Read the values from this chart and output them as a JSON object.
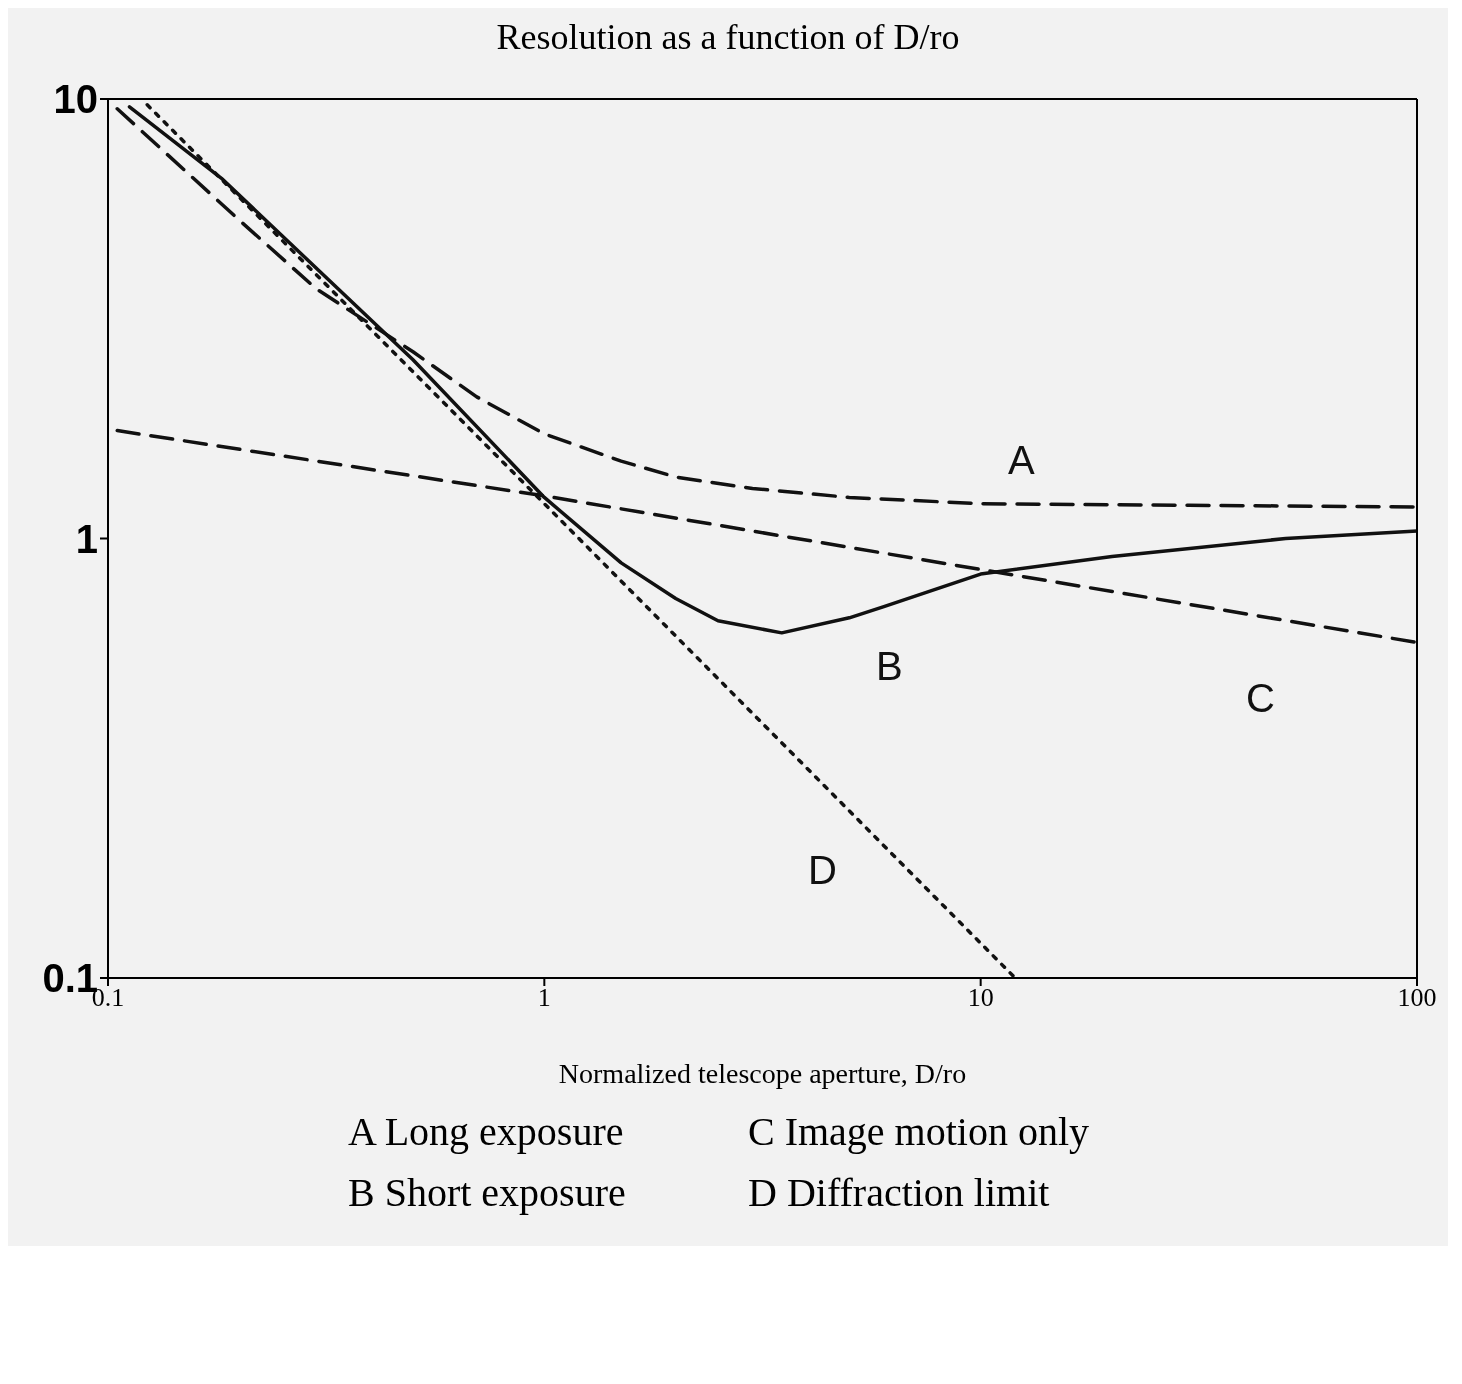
{
  "chart_data": {
    "type": "line",
    "title": "Resolution as a function of  D/ro",
    "xlabel": "Normalized telescope aperture, D/ro",
    "log": "xy",
    "xlim": [
      0.1,
      100
    ],
    "ylim": [
      0.1,
      10
    ],
    "xticks": [
      0.1,
      1,
      10,
      100
    ],
    "yticks": [
      0.1,
      1,
      10
    ],
    "legend": false,
    "marker": "none",
    "series": [
      {
        "name": "A",
        "color": "#111111",
        "line_style": "dashed",
        "x": [
          0.105,
          0.2,
          0.3,
          0.5,
          0.7,
          1,
          1.5,
          2,
          3,
          5,
          10,
          30,
          100
        ],
        "values": [
          9.5,
          5.3,
          3.7,
          2.66,
          2.1,
          1.73,
          1.5,
          1.38,
          1.3,
          1.24,
          1.2,
          1.19,
          1.18
        ]
      },
      {
        "name": "B",
        "color": "#111111",
        "line_style": "solid",
        "x": [
          0.112,
          0.182,
          0.5,
          1,
          1.5,
          2,
          2.5,
          3.5,
          5,
          6,
          10,
          20,
          50,
          100
        ],
        "values": [
          9.6,
          6.6,
          2.55,
          1.24,
          0.88,
          0.73,
          0.65,
          0.61,
          0.66,
          0.7,
          0.83,
          0.91,
          1,
          1.04
        ]
      },
      {
        "name": "C",
        "color": "#111111",
        "line_style": "dashed",
        "x": [
          0.105,
          1,
          10,
          100
        ],
        "values": [
          1.76,
          1.25,
          0.85,
          0.58
        ]
      },
      {
        "name": "D",
        "color": "#111111",
        "line_style": "dotted",
        "x": [
          0.123,
          1,
          12
        ],
        "values": [
          9.7,
          1.2,
          0.1
        ]
      }
    ],
    "annotations": [
      "A  Long exposure",
      "C  Image motion only",
      "B  Short exposure",
      "D  Diffraction limit"
    ]
  }
}
